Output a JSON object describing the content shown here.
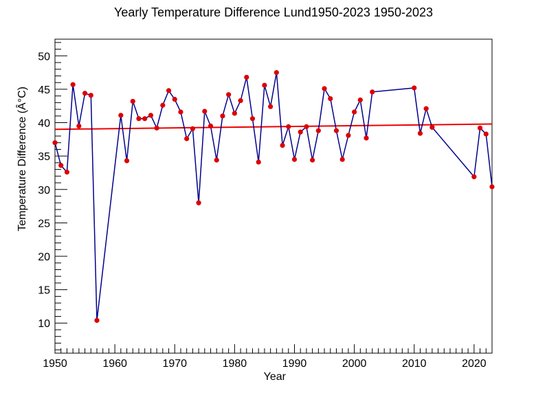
{
  "chart_data": {
    "type": "line",
    "title": "Yearly Temperature Difference Lund1950-2023 1950-2023",
    "xlabel": "Year",
    "ylabel": "Temperature Difference (Â°C)",
    "xlim": [
      1950,
      2023
    ],
    "ylim": [
      5.5,
      52.5
    ],
    "x_ticks": [
      1950,
      1960,
      1970,
      1980,
      1990,
      2000,
      2010,
      2020
    ],
    "y_ticks": [
      10,
      15,
      20,
      25,
      30,
      35,
      40,
      45,
      50
    ],
    "grid": false,
    "series": [
      {
        "role": "data",
        "color": "#00008b",
        "marker_color": "#dd0000",
        "points": [
          [
            1950,
            37.0
          ],
          [
            1951,
            33.6
          ],
          [
            1952,
            32.6
          ],
          [
            1953,
            45.7
          ],
          [
            1954,
            39.5
          ],
          [
            1955,
            44.4
          ],
          [
            1956,
            44.1
          ],
          [
            1957,
            10.4
          ],
          [
            1961,
            41.1
          ],
          [
            1962,
            34.3
          ],
          [
            1963,
            43.2
          ],
          [
            1964,
            40.6
          ],
          [
            1965,
            40.6
          ],
          [
            1966,
            41.1
          ],
          [
            1967,
            39.2
          ],
          [
            1968,
            42.6
          ],
          [
            1969,
            44.8
          ],
          [
            1970,
            43.5
          ],
          [
            1971,
            41.6
          ],
          [
            1972,
            37.6
          ],
          [
            1973,
            39.1
          ],
          [
            1974,
            28.0
          ],
          [
            1975,
            41.7
          ],
          [
            1976,
            39.5
          ],
          [
            1977,
            34.4
          ],
          [
            1978,
            41.0
          ],
          [
            1979,
            44.2
          ],
          [
            1980,
            41.4
          ],
          [
            1981,
            43.3
          ],
          [
            1982,
            46.8
          ],
          [
            1983,
            40.6
          ],
          [
            1984,
            34.1
          ],
          [
            1985,
            45.6
          ],
          [
            1986,
            42.4
          ],
          [
            1987,
            47.5
          ],
          [
            1988,
            36.6
          ],
          [
            1989,
            39.4
          ],
          [
            1990,
            34.5
          ],
          [
            1991,
            38.6
          ],
          [
            1992,
            39.4
          ],
          [
            1993,
            34.4
          ],
          [
            1994,
            38.8
          ],
          [
            1995,
            45.1
          ],
          [
            1996,
            43.6
          ],
          [
            1997,
            38.8
          ],
          [
            1998,
            34.5
          ],
          [
            1999,
            38.1
          ],
          [
            2000,
            41.6
          ],
          [
            2001,
            43.4
          ],
          [
            2002,
            37.7
          ],
          [
            2003,
            44.6
          ],
          [
            2010,
            45.2
          ],
          [
            2011,
            38.4
          ],
          [
            2012,
            42.1
          ],
          [
            2013,
            39.3
          ],
          [
            2020,
            31.9
          ],
          [
            2021,
            39.2
          ],
          [
            2022,
            38.3
          ],
          [
            2023,
            30.4
          ]
        ]
      },
      {
        "role": "trend",
        "color": "#ee0000",
        "points": [
          [
            1950,
            39.0
          ],
          [
            2023,
            39.8
          ]
        ]
      }
    ]
  }
}
